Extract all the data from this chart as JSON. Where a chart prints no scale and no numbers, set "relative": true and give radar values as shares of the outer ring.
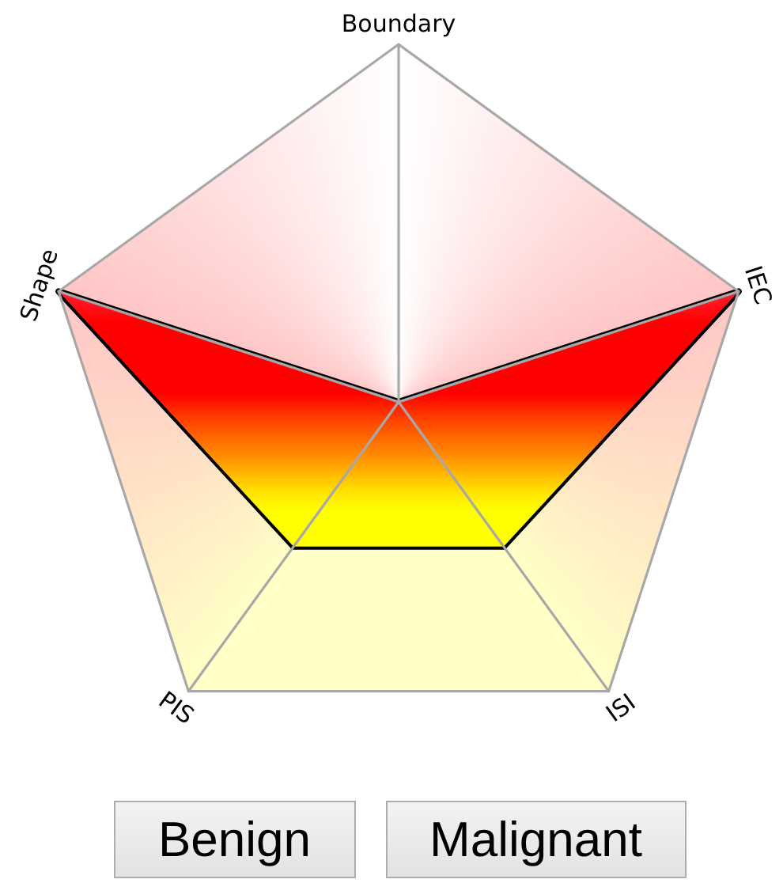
{
  "chart_data": {
    "type": "radar",
    "relative": true,
    "categories": [
      "Boundary",
      "IEC",
      "ISI",
      "PIS",
      "Shape"
    ],
    "series": [
      {
        "color": "#ff0000",
        "values": [
          0,
          1,
          0.5,
          0.5,
          1
        ]
      }
    ],
    "annotations": [
      "Benign",
      "Malignant"
    ]
  }
}
